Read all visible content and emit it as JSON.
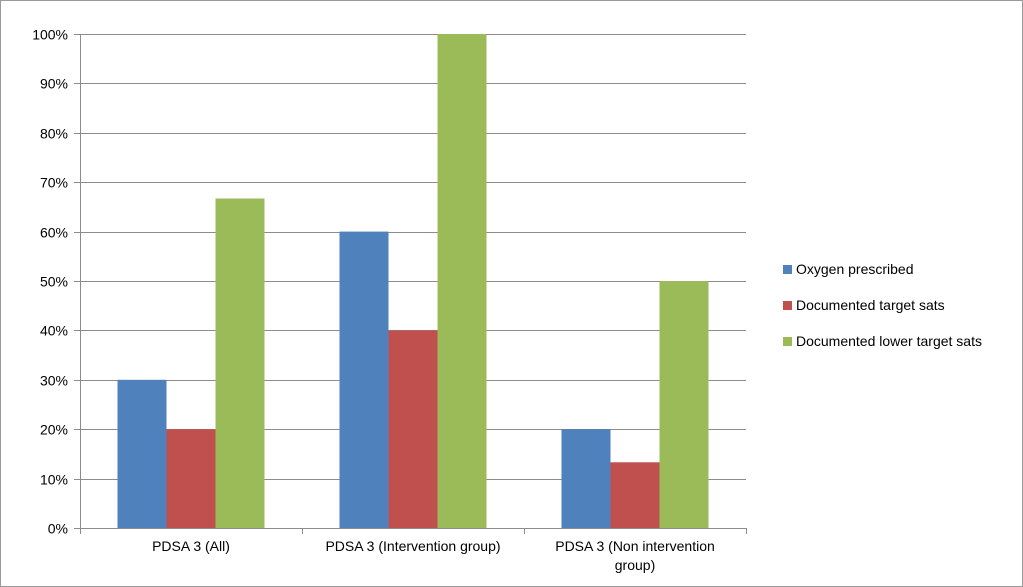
{
  "chart_data": {
    "type": "bar",
    "categories": [
      "PDSA 3 (All)",
      "PDSA 3 (Intervention group)",
      "PDSA 3 (Non intervention group)"
    ],
    "category_lines": [
      [
        "PDSA 3 (All)"
      ],
      [
        "PDSA 3 (Intervention group)"
      ],
      [
        "PDSA 3 (Non intervention",
        "group)"
      ]
    ],
    "series": [
      {
        "name": "Oxygen prescribed",
        "values": [
          30,
          60,
          20
        ],
        "color": "#4f81bd"
      },
      {
        "name": "Documented target sats",
        "values": [
          20,
          40,
          13.3
        ],
        "color": "#c0504d"
      },
      {
        "name": "Documented lower target sats",
        "values": [
          66.7,
          100,
          50
        ],
        "color": "#9bbb59"
      }
    ],
    "y_ticks": [
      "0%",
      "10%",
      "20%",
      "30%",
      "40%",
      "50%",
      "60%",
      "70%",
      "80%",
      "90%",
      "100%"
    ],
    "ylim": [
      0,
      100
    ],
    "y_unit": "%",
    "grid": true,
    "legend_position": "right",
    "title": "",
    "xlabel": "",
    "ylabel": ""
  }
}
